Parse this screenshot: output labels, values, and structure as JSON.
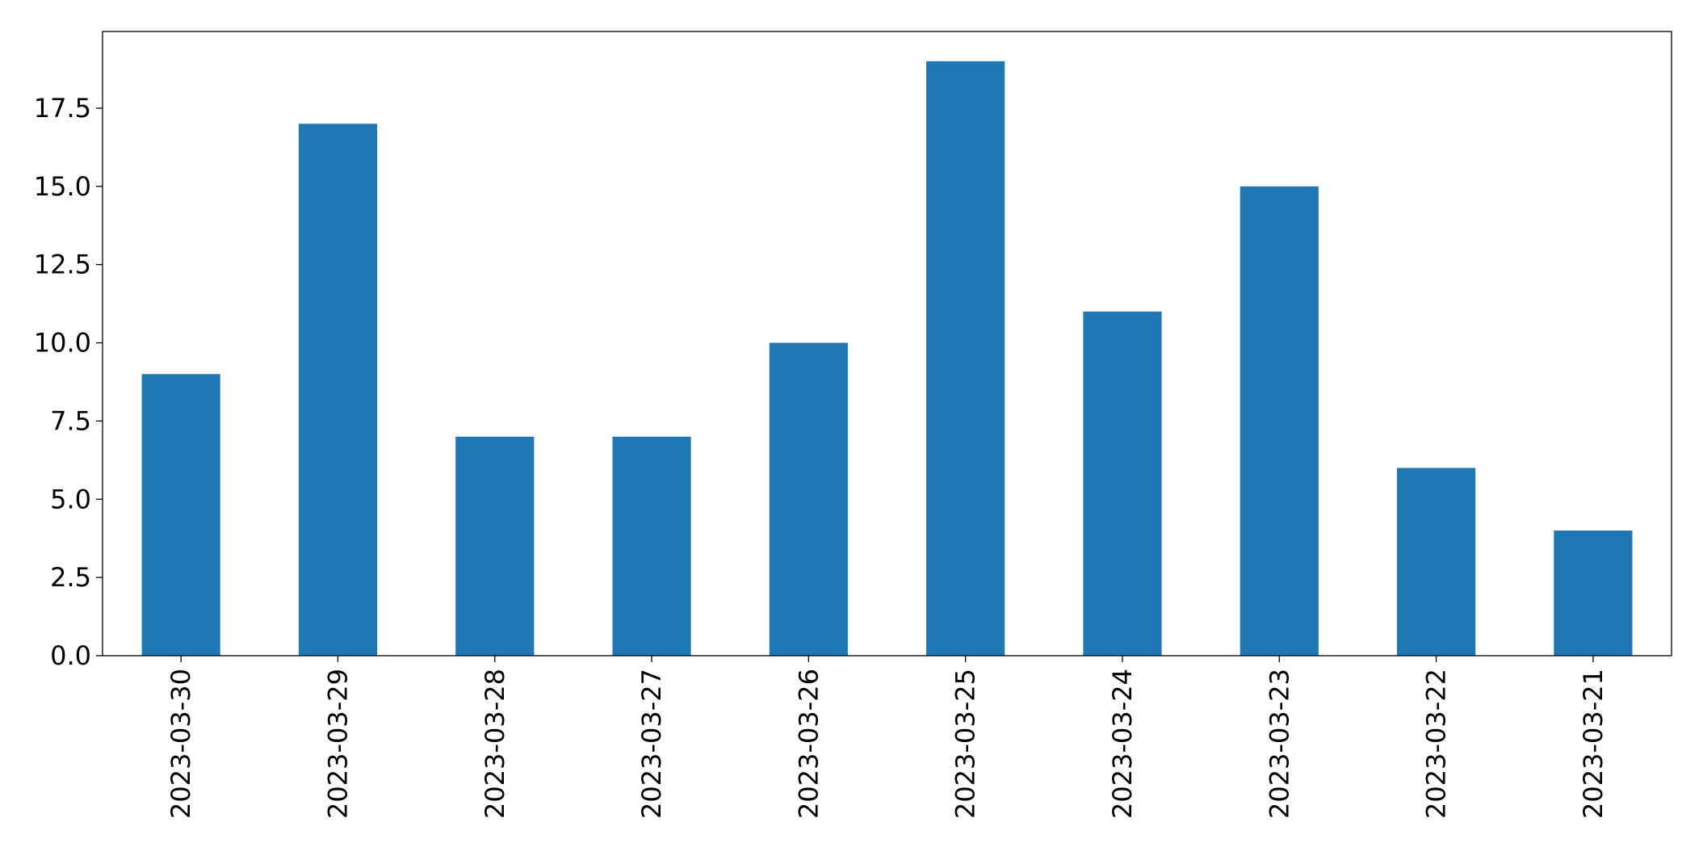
{
  "chart_data": {
    "type": "bar",
    "title": "",
    "xlabel": "",
    "ylabel": "",
    "categories": [
      "2023-03-30",
      "2023-03-29",
      "2023-03-28",
      "2023-03-27",
      "2023-03-26",
      "2023-03-25",
      "2023-03-24",
      "2023-03-23",
      "2023-03-22",
      "2023-03-21"
    ],
    "values": [
      9,
      17,
      7,
      7,
      10,
      19,
      11,
      15,
      6,
      4
    ],
    "ylim": [
      0,
      19.95
    ],
    "yticks": [
      "0.0",
      "2.5",
      "5.0",
      "7.5",
      "10.0",
      "12.5",
      "15.0",
      "17.5"
    ],
    "ytick_values": [
      0,
      2.5,
      5,
      7.5,
      10,
      12.5,
      15,
      17.5
    ],
    "bar_color": "#1f77b4",
    "grid": false,
    "legend": "none"
  }
}
